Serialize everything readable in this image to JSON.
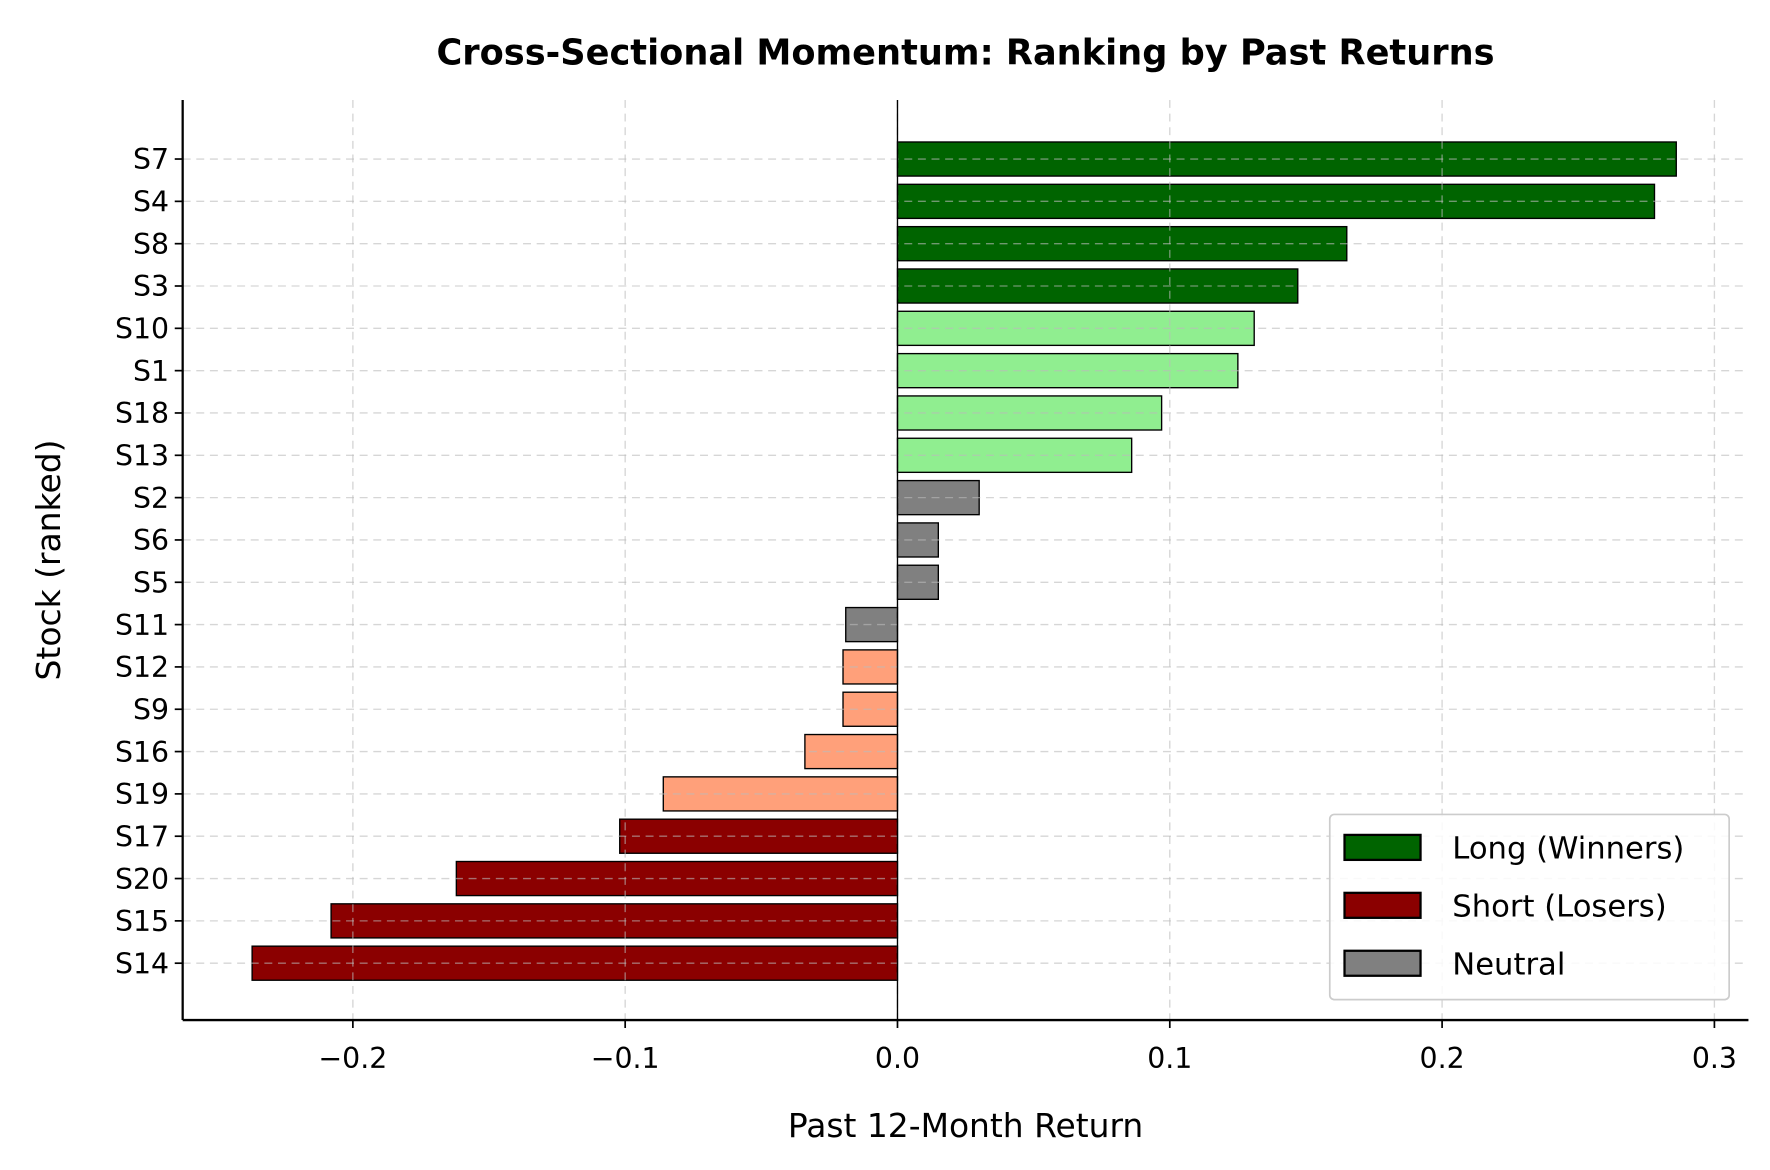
{
  "chart_data": {
    "type": "bar",
    "orientation": "horizontal",
    "title": "Cross-Sectional Momentum: Ranking by Past Returns",
    "xlabel": "Past 12-Month Return",
    "ylabel": "Stock (ranked)",
    "xlim": [
      -0.2625,
      0.3125
    ],
    "xticks": [
      -0.2,
      -0.1,
      0.0,
      0.1,
      0.2,
      0.3
    ],
    "xtick_labels": [
      "−0.2",
      "−0.1",
      "0.0",
      "0.1",
      "0.2",
      "0.3"
    ],
    "grid": true,
    "zero_line": true,
    "categories": [
      "S7",
      "S4",
      "S8",
      "S3",
      "S10",
      "S1",
      "S18",
      "S13",
      "S2",
      "S6",
      "S5",
      "S11",
      "S12",
      "S9",
      "S16",
      "S19",
      "S17",
      "S20",
      "S15",
      "S14"
    ],
    "values": [
      0.286,
      0.278,
      0.165,
      0.147,
      0.131,
      0.125,
      0.097,
      0.086,
      0.03,
      0.015,
      0.015,
      -0.019,
      -0.02,
      -0.02,
      -0.034,
      -0.086,
      -0.102,
      -0.162,
      -0.208,
      -0.237
    ],
    "bar_colors": [
      "#006400",
      "#006400",
      "#006400",
      "#006400",
      "#90ee90",
      "#90ee90",
      "#90ee90",
      "#90ee90",
      "#808080",
      "#808080",
      "#808080",
      "#808080",
      "#ffa07a",
      "#ffa07a",
      "#ffa07a",
      "#ffa07a",
      "#8b0000",
      "#8b0000",
      "#8b0000",
      "#8b0000"
    ],
    "legend": {
      "placement": "lower-right",
      "entries": [
        {
          "label": "Long (Winners)",
          "color": "#006400"
        },
        {
          "label": "Short (Losers)",
          "color": "#8b0000"
        },
        {
          "label": "Neutral",
          "color": "#808080"
        }
      ]
    }
  }
}
